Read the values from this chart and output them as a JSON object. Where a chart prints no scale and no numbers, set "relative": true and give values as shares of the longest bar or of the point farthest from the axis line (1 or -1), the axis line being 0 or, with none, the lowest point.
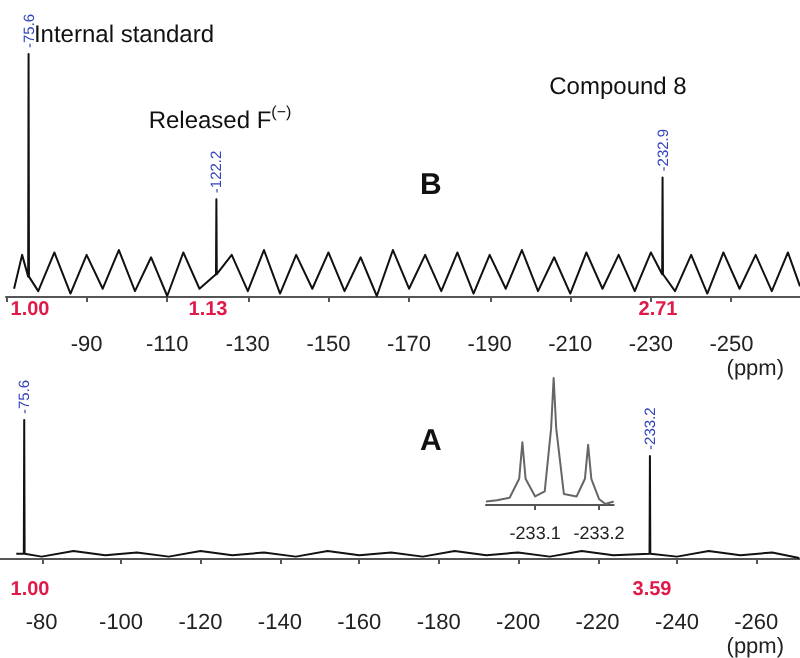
{
  "chart_data": [
    {
      "type": "line",
      "title": "B",
      "xlabel": "(ppm)",
      "relative": true,
      "xlim": [
        -70,
        -267
      ],
      "xticks": [
        {
          "value": -70,
          "label": null
        },
        -90,
        -110,
        -130,
        -150,
        -170,
        -190,
        -210,
        -230,
        -250
      ],
      "annotations": [
        "Internal standard",
        "Released F$^{(−)}$",
        "Compound 8",
        {
          "text": "-75.6",
          "x": -75.6,
          "y": 1
        },
        {
          "text": "-122.2",
          "x": -122.2,
          "y": 0.4
        },
        {
          "text": "-232.9",
          "x": -232.9,
          "y": 0.49
        },
        "1.00",
        "1.13",
        "2.71"
      ],
      "series": [
        {
          "color": "#111111",
          "x": [
            -72,
            -74,
            -75.5,
            -75.6,
            -75.7,
            -78,
            -82,
            -86,
            -90,
            -94,
            -98,
            -102,
            -106,
            -110,
            -114,
            -118,
            -122.1,
            -122.2,
            -122.3,
            -126,
            -130,
            -134,
            -138,
            -142,
            -146,
            -150,
            -154,
            -158,
            -162,
            -166,
            -170,
            -174,
            -178,
            -182,
            -186,
            -190,
            -194,
            -198,
            -202,
            -206,
            -210,
            -214,
            -218,
            -222,
            -226,
            -230,
            -232.8,
            -232.9,
            -233.0,
            -236,
            -240,
            -244,
            -248,
            -252,
            -256,
            -260,
            -264,
            -267
          ],
          "values": [
            0.03,
            0.17,
            0.08,
            1,
            0.08,
            0.02,
            0.18,
            0.01,
            0.17,
            0.03,
            0.19,
            0.02,
            0.16,
            0.0,
            0.18,
            0.03,
            0.09,
            0.4,
            0.09,
            0.17,
            0.02,
            0.19,
            0.01,
            0.17,
            0.03,
            0.18,
            0.02,
            0.16,
            0.0,
            0.19,
            0.03,
            0.17,
            0.02,
            0.18,
            0.01,
            0.17,
            0.03,
            0.19,
            0.02,
            0.16,
            0.01,
            0.18,
            0.03,
            0.17,
            0.02,
            0.18,
            0.09,
            0.49,
            0.09,
            0.02,
            0.17,
            0.01,
            0.18,
            0.03,
            0.17,
            0.02,
            0.18,
            0.04
          ]
        }
      ]
    },
    {
      "type": "line",
      "title": "A",
      "xlabel": "(ppm)",
      "relative": true,
      "xlim": [
        -69.5,
        -271
      ],
      "xticks": [
        -80,
        -100,
        -120,
        -140,
        -160,
        -180,
        -200,
        -220,
        -240,
        -260
      ],
      "annotations": [
        {
          "text": "-75.6",
          "x": -75.6,
          "y": 1
        },
        {
          "text": "-233.2",
          "x": -233.2,
          "y": 0.74
        },
        "1.00",
        "3.59"
      ],
      "series": [
        {
          "color": "#111111",
          "x": [
            -73.6,
            -75.5,
            -75.6,
            -75.7,
            -80,
            -88,
            -96,
            -104,
            -112,
            -120,
            -128,
            -136,
            -144,
            -152,
            -160,
            -168,
            -176,
            -184,
            -192,
            -200,
            -208,
            -216,
            -224,
            -233.1,
            -233.2,
            -233.3,
            -240,
            -248,
            -256,
            -264,
            -270.8
          ],
          "values": [
            0.03,
            0.03,
            1,
            0.03,
            0.01,
            0.05,
            0.02,
            0.04,
            0.01,
            0.05,
            0.02,
            0.04,
            0.01,
            0.05,
            0.02,
            0.04,
            0.01,
            0.05,
            0.02,
            0.04,
            0.01,
            0.05,
            0.02,
            0.03,
            0.74,
            0.03,
            0.01,
            0.05,
            0.02,
            0.04,
            0.0
          ]
        }
      ]
    },
    {
      "type": "line",
      "relative": true,
      "xlim": [
        -233.023,
        -233.223
      ],
      "xticks": [
        -233.1,
        -233.2
      ],
      "series": [
        {
          "color": "#666666",
          "x": [
            -233.023,
            -233.04,
            -233.06,
            -233.075,
            -233.08,
            -233.085,
            -233.1,
            -233.115,
            -233.125,
            -233.129,
            -233.133,
            -233.145,
            -233.165,
            -233.178,
            -233.183,
            -233.188,
            -233.2,
            -233.21,
            -233.223
          ],
          "values": [
            0.02,
            0.03,
            0.05,
            0.2,
            0.49,
            0.2,
            0.06,
            0.1,
            0.6,
            1,
            0.6,
            0.08,
            0.06,
            0.2,
            0.47,
            0.2,
            0.04,
            0.0,
            0.02
          ]
        }
      ]
    }
  ]
}
